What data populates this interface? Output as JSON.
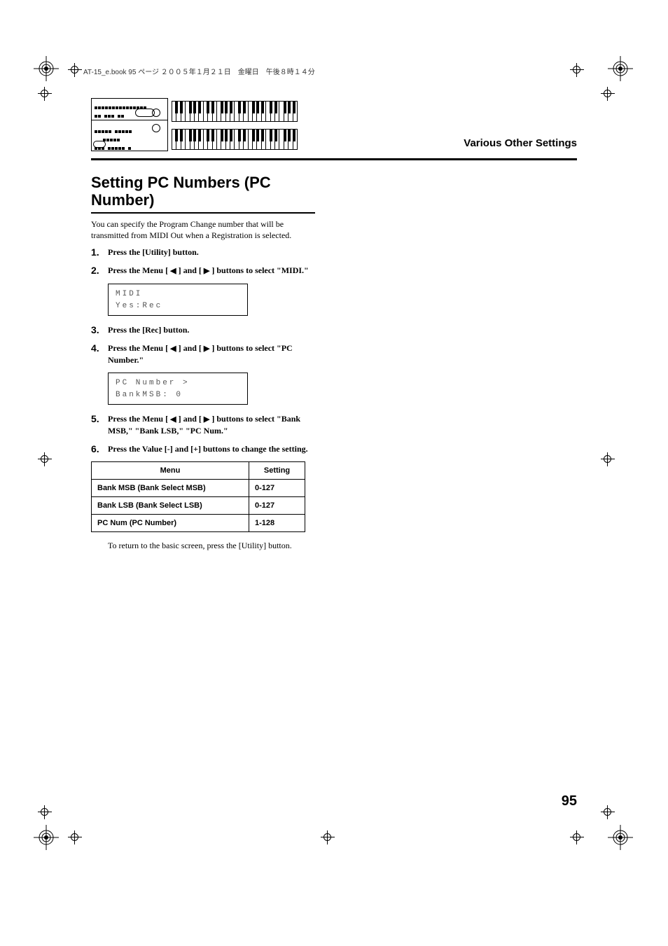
{
  "header_meta": "AT-15_e.book 95 ページ ２００５年１月２１日　金曜日　午後８時１４分",
  "section_label": "Various Other Settings",
  "heading": "Setting PC Numbers (PC Number)",
  "intro": "You can specify the Program Change number that will be transmitted from MIDI Out when a Registration is selected.",
  "steps": [
    {
      "n": "1.",
      "text": "Press the [Utility] button."
    },
    {
      "n": "2.",
      "text_parts": [
        "Press the Menu [ ",
        "◀",
        " ] and [ ",
        "▶",
        " ] buttons to select \"MIDI.\""
      ],
      "lcd": {
        "line1": "       MIDI",
        "line2": " Yes:Rec"
      }
    },
    {
      "n": "3.",
      "text": "Press the [Rec] button."
    },
    {
      "n": "4.",
      "text_parts": [
        "Press the Menu [ ",
        "◀",
        " ] and [ ",
        "▶",
        " ] buttons to select \"PC Number.\""
      ],
      "lcd": {
        "line1": "  PC Number   >",
        "line2": " BankMSB:  0"
      }
    },
    {
      "n": "5.",
      "text_parts": [
        "Press the Menu [ ",
        "◀",
        " ] and [ ",
        "▶",
        " ] buttons to select \"Bank MSB,\" \"Bank LSB,\" \"PC Num.\""
      ]
    },
    {
      "n": "6.",
      "text": "Press the Value [-] and [+] buttons to change the setting."
    }
  ],
  "table": {
    "columns": [
      "Menu",
      "Setting"
    ],
    "rows": [
      [
        "Bank MSB (Bank Select MSB)",
        "0-127"
      ],
      [
        "Bank LSB (Bank Select LSB)",
        "0-127"
      ],
      [
        "PC Num (PC Number)",
        "1-128"
      ]
    ]
  },
  "return_note": "To return to the basic screen, press the [Utility] button.",
  "page_number": "95",
  "keyboard": {
    "white_keys": 28
  },
  "colors": {
    "text": "#000000",
    "bg": "#ffffff",
    "rule": "#000000",
    "lcd_text": "#555555"
  }
}
